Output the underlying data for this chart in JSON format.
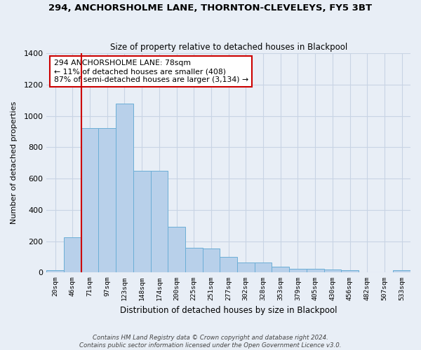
{
  "title1": "294, ANCHORSHOLME LANE, THORNTON-CLEVELEYS, FY5 3BT",
  "title2": "Size of property relative to detached houses in Blackpool",
  "xlabel": "Distribution of detached houses by size in Blackpool",
  "ylabel": "Number of detached properties",
  "categories": [
    "20sqm",
    "46sqm",
    "71sqm",
    "97sqm",
    "123sqm",
    "148sqm",
    "174sqm",
    "200sqm",
    "225sqm",
    "251sqm",
    "277sqm",
    "302sqm",
    "328sqm",
    "353sqm",
    "379sqm",
    "405sqm",
    "430sqm",
    "456sqm",
    "482sqm",
    "507sqm",
    "533sqm"
  ],
  "values": [
    15,
    225,
    920,
    920,
    1080,
    650,
    650,
    290,
    160,
    155,
    100,
    65,
    65,
    37,
    25,
    22,
    20,
    13,
    0,
    0,
    13
  ],
  "bar_color": "#b8d0ea",
  "bar_edge_color": "#6baed6",
  "grid_color": "#c8d4e4",
  "bg_color": "#e8eef6",
  "annotation_text": "294 ANCHORSHOLME LANE: 78sqm\n← 11% of detached houses are smaller (408)\n87% of semi-detached houses are larger (3,134) →",
  "vline_index": 2,
  "vline_color": "#cc0000",
  "annotation_box_color": "#ffffff",
  "annotation_box_edge": "#cc0000",
  "footer": "Contains HM Land Registry data © Crown copyright and database right 2024.\nContains public sector information licensed under the Open Government Licence v3.0.",
  "ylim": [
    0,
    1400
  ],
  "yticks": [
    0,
    200,
    400,
    600,
    800,
    1000,
    1200,
    1400
  ]
}
